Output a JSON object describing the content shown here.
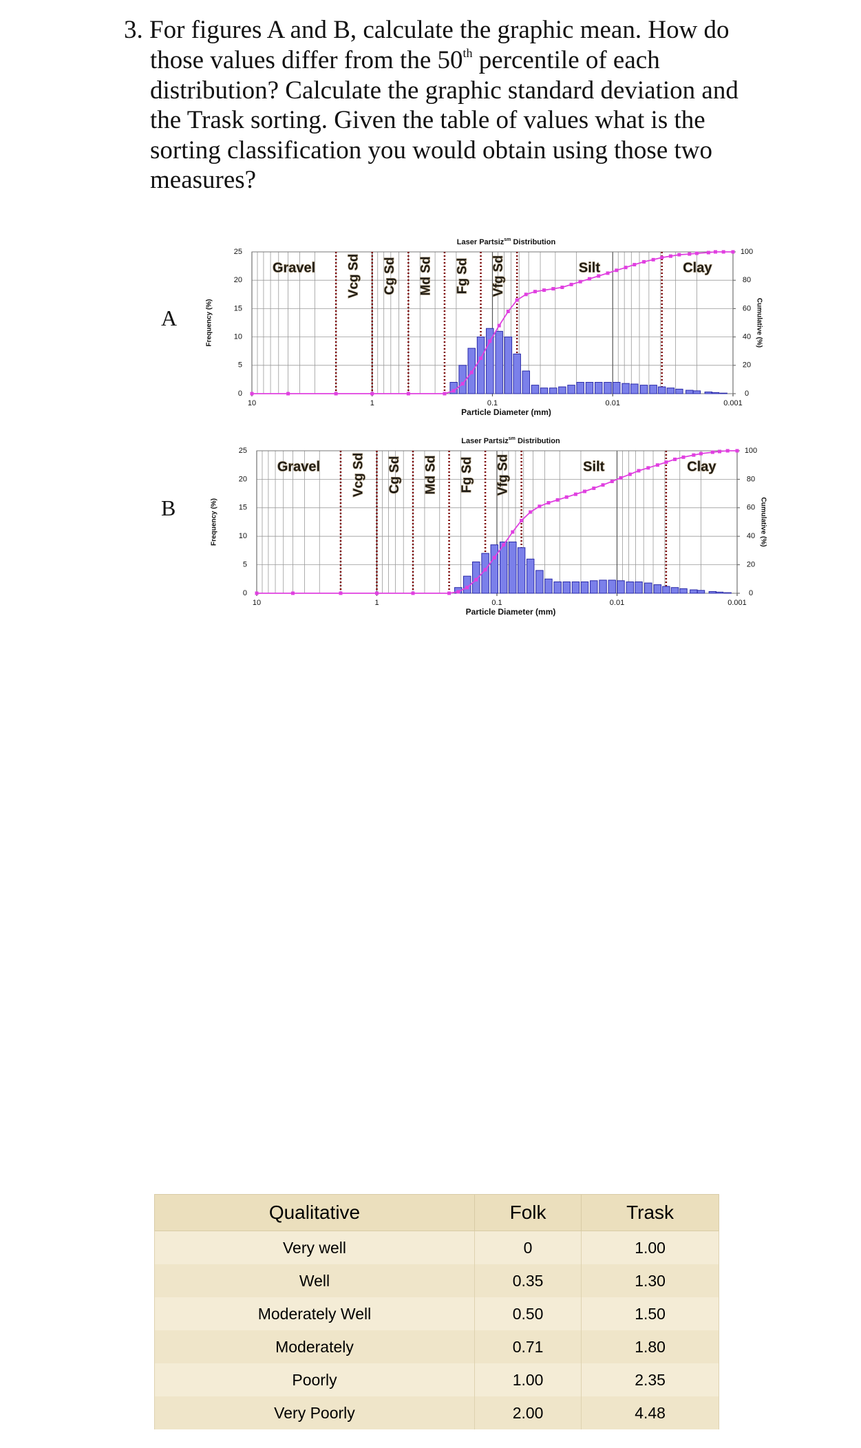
{
  "question": {
    "line_1": "3. For figures A and B, calculate the graphic mean.  How do",
    "line_2": "those values differ from the 50",
    "line_2_sup": "th",
    "line_2_end": " percentile of each",
    "line_3": "distribution?  Calculate the graphic standard deviation and",
    "line_4": "the Trask sorting.  Given the table of values what is the",
    "line_5": "sorting classification you would obtain using those two",
    "line_6": "measures?"
  },
  "figures": [
    {
      "label": "A",
      "chart": {
        "type": "bar",
        "title": "Laser Partsiz",
        "title_sup": "sm",
        "title_end": " Distribution",
        "x_label": "Particle Diameter (mm)",
        "y_label": "Frequency (%)",
        "y2_label": "Cumulative (%)",
        "x_scale": "log",
        "xlim": [
          10,
          0.001
        ],
        "xticks": [
          10,
          1,
          0.1,
          0.01,
          0.001
        ],
        "ylim": [
          0,
          25
        ],
        "yticks": [
          0,
          5,
          10,
          15,
          20,
          25
        ],
        "y2lim": [
          0,
          100
        ],
        "y2ticks": [
          0,
          20,
          40,
          60,
          80,
          100
        ],
        "grid": true,
        "zones": [
          "Gravel",
          "Vcg Sd",
          "Cg Sd",
          "Md Sd",
          "Fg Sd",
          "Vfg Sd",
          "Silt",
          "Clay"
        ],
        "zone_boundaries": [
          2,
          1,
          0.5,
          0.25,
          0.125,
          0.0625,
          0.0039
        ],
        "color": "#7b80ea",
        "x": [
          0.21,
          0.177,
          0.149,
          0.125,
          0.105,
          0.088,
          0.074,
          0.0625,
          0.0526,
          0.0442,
          0.0372,
          0.03125,
          0.0263,
          0.0221,
          0.0186,
          0.0156,
          0.0131,
          0.011,
          0.0093,
          0.0078,
          0.0066,
          0.0055,
          0.0046,
          0.0039,
          0.0033,
          0.0028,
          0.0023,
          0.002,
          0.0016,
          0.0014,
          0.0012
        ],
        "values": [
          2,
          5,
          8,
          10,
          11.5,
          11,
          10,
          7,
          4,
          1.5,
          1,
          1,
          1.2,
          1.5,
          2,
          2,
          2,
          2,
          2,
          1.8,
          1.7,
          1.5,
          1.5,
          1.2,
          1,
          0.8,
          0.6,
          0.5,
          0.3,
          0.2,
          0.1
        ],
        "line": {
          "axis": "y2",
          "color": "#e040e0",
          "x": [
            10,
            5,
            2,
            1,
            0.5,
            0.25,
            0.21,
            0.177,
            0.149,
            0.125,
            0.105,
            0.088,
            0.074,
            0.0625,
            0.0526,
            0.0442,
            0.0372,
            0.03125,
            0.0263,
            0.0221,
            0.0186,
            0.0156,
            0.0131,
            0.011,
            0.0093,
            0.0078,
            0.0066,
            0.0055,
            0.0046,
            0.0039,
            0.0033,
            0.0028,
            0.0023,
            0.002,
            0.0016,
            0.0014,
            0.0012,
            0.001
          ],
          "values": [
            0,
            0,
            0,
            0,
            0,
            0,
            2,
            7,
            15,
            25,
            37,
            48,
            58,
            66,
            70,
            72,
            73,
            74,
            75,
            77,
            79,
            81,
            83,
            85,
            87,
            89,
            91,
            93,
            94.5,
            96,
            97,
            98,
            98.5,
            99,
            99.5,
            100,
            100,
            100
          ]
        }
      }
    },
    {
      "label": "B",
      "chart": {
        "type": "bar",
        "title": "Laser Partsiz",
        "title_sup": "sm",
        "title_end": " Distribution",
        "x_label": "Particle Diameter (mm)",
        "y_label": "Frequency (%)",
        "y2_label": "Cumulative (%)",
        "x_scale": "log",
        "xlim": [
          10,
          0.001
        ],
        "xticks": [
          10,
          1,
          0.1,
          0.01,
          0.001
        ],
        "ylim": [
          0,
          25
        ],
        "yticks": [
          0,
          5,
          10,
          15,
          20,
          25
        ],
        "y2lim": [
          0,
          100
        ],
        "y2ticks": [
          0,
          20,
          40,
          60,
          80,
          100
        ],
        "grid": true,
        "zones": [
          "Gravel",
          "Vcg Sd",
          "Cg Sd",
          "Md Sd",
          "Fg Sd",
          "Vfg Sd",
          "Silt",
          "Clay"
        ],
        "zone_boundaries": [
          2,
          1,
          0.5,
          0.25,
          0.125,
          0.0625,
          0.0039
        ],
        "color": "#7b80ea",
        "x": [
          0.21,
          0.177,
          0.149,
          0.125,
          0.105,
          0.088,
          0.074,
          0.0625,
          0.0526,
          0.0442,
          0.0372,
          0.03125,
          0.0263,
          0.0221,
          0.0186,
          0.0156,
          0.0131,
          0.011,
          0.0093,
          0.0078,
          0.0066,
          0.0055,
          0.0046,
          0.0039,
          0.0033,
          0.0028,
          0.0023,
          0.002,
          0.0016,
          0.0014,
          0.0012
        ],
        "values": [
          1,
          3,
          5.5,
          7,
          8.5,
          9,
          9,
          8,
          6,
          4,
          2.5,
          2,
          2,
          2,
          2,
          2.2,
          2.3,
          2.3,
          2.2,
          2,
          2,
          1.8,
          1.5,
          1.2,
          1,
          0.8,
          0.6,
          0.5,
          0.3,
          0.2,
          0.1
        ],
        "line": {
          "axis": "y2",
          "color": "#e040e0",
          "x": [
            10,
            5,
            2,
            1,
            0.5,
            0.25,
            0.21,
            0.177,
            0.149,
            0.125,
            0.105,
            0.088,
            0.074,
            0.0625,
            0.0526,
            0.0442,
            0.0372,
            0.03125,
            0.0263,
            0.0221,
            0.0186,
            0.0156,
            0.0131,
            0.011,
            0.0093,
            0.0078,
            0.0066,
            0.0055,
            0.0046,
            0.0039,
            0.0033,
            0.0028,
            0.0023,
            0.002,
            0.0016,
            0.0014,
            0.0012,
            0.001
          ],
          "values": [
            0,
            0,
            0,
            0,
            0,
            0,
            1,
            4,
            9.5,
            16.5,
            25,
            34,
            43,
            51,
            57,
            61,
            63.5,
            65.5,
            67.5,
            69.5,
            71.5,
            73.7,
            76,
            78.5,
            81,
            83.5,
            86,
            88,
            90,
            92,
            94,
            95.5,
            97,
            98,
            99,
            99.5,
            100,
            100
          ]
        }
      }
    }
  ],
  "table": {
    "header": [
      "Qualitative",
      "Folk",
      "Trask"
    ],
    "rows": [
      [
        "Very well",
        "0",
        "1.00"
      ],
      [
        "Well",
        "0.35",
        "1.30"
      ],
      [
        "Moderately Well",
        "0.50",
        "1.50"
      ],
      [
        "Moderately",
        "0.71",
        "1.80"
      ],
      [
        "Poorly",
        "1.00",
        "2.35"
      ],
      [
        "Very Poorly",
        "2.00",
        "4.48"
      ]
    ]
  }
}
